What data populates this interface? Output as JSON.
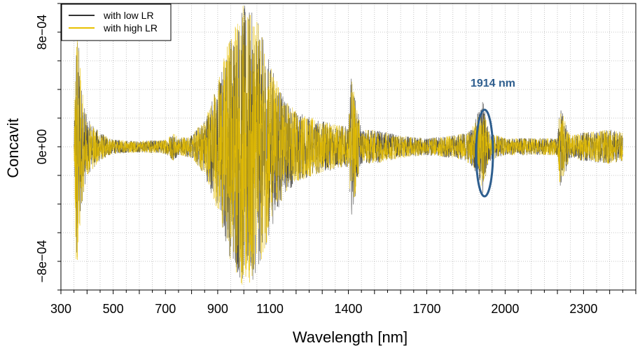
{
  "chart_data": {
    "type": "line",
    "xlabel": "Wavelength [nm]",
    "ylabel": "Concavit",
    "xlim": [
      300,
      2500
    ],
    "ylim": [
      -0.001,
      0.001
    ],
    "x_ticks": [
      300,
      500,
      700,
      900,
      1100,
      1400,
      1700,
      2000,
      2300
    ],
    "x_tick_labels": [
      "300",
      "500",
      "700",
      "900",
      "1100",
      "1400",
      "1700",
      "2000",
      "2300"
    ],
    "y_ticks": [
      -0.0008,
      0,
      0.0008
    ],
    "y_tick_labels": [
      "−8e−04",
      "0e+00",
      "8e−04"
    ],
    "grid": true,
    "legend_position": "top-left",
    "series": [
      {
        "name": "with low LR",
        "color": "#333333",
        "envelope": {
          "x": [
            350,
            360,
            380,
            400,
            450,
            500,
            600,
            700,
            730,
            750,
            800,
            850,
            900,
            950,
            1000,
            1050,
            1100,
            1150,
            1200,
            1300,
            1400,
            1410,
            1450,
            1500,
            1600,
            1700,
            1800,
            1850,
            1880,
            1914,
            1940,
            2000,
            2100,
            2200,
            2210,
            2250,
            2300,
            2400,
            2450
          ],
          "amplitude": [
            5e-05,
            0.00095,
            0.0004,
            0.0002,
            0.0001,
            5e-05,
            4e-05,
            5e-05,
            0.0001,
            6e-05,
            8e-05,
            0.0002,
            0.00045,
            0.0008,
            0.001,
            0.0009,
            0.0006,
            0.00035,
            0.00025,
            0.00018,
            0.00014,
            0.0005,
            0.00012,
            0.00012,
            8e-05,
            6e-05,
            8e-05,
            0.0001,
            0.00015,
            0.00035,
            0.0001,
            6e-05,
            6e-05,
            6e-05,
            0.0003,
            8e-05,
            0.0001,
            0.00012,
            0.0001
          ]
        }
      },
      {
        "name": "with high LR",
        "color": "#E8C000",
        "envelope": {
          "x": [
            350,
            360,
            380,
            400,
            450,
            500,
            600,
            700,
            730,
            750,
            800,
            850,
            900,
            950,
            1000,
            1050,
            1100,
            1150,
            1200,
            1300,
            1400,
            1410,
            1450,
            1500,
            1600,
            1700,
            1800,
            1850,
            1880,
            1914,
            1940,
            2000,
            2100,
            2200,
            2210,
            2250,
            2300,
            2400,
            2450
          ],
          "amplitude": [
            5e-05,
            0.00095,
            0.0004,
            0.0002,
            0.0001,
            5e-05,
            4e-05,
            5e-05,
            0.0001,
            6e-05,
            8e-05,
            0.0002,
            0.00045,
            0.0008,
            0.001,
            0.0009,
            0.0006,
            0.00035,
            0.00025,
            0.00018,
            0.00014,
            0.0005,
            0.00012,
            0.00012,
            8e-05,
            6e-05,
            8e-05,
            0.0001,
            0.00015,
            0.0003,
            0.0001,
            6e-05,
            6e-05,
            6e-05,
            0.00028,
            8e-05,
            0.0001,
            0.00012,
            0.0001
          ]
        }
      }
    ],
    "annotations": [
      {
        "text": "1914 nm",
        "x": 1914,
        "color": "#2E5E8E"
      }
    ]
  }
}
